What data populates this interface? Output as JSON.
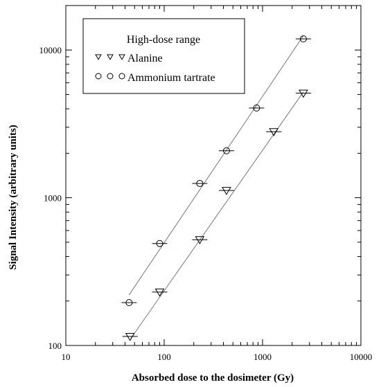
{
  "chart_data": {
    "type": "scatter",
    "title": "",
    "xlabel": "Absorbed dose to the dosimeter (Gy)",
    "ylabel": "Signal Intensity (arbitrary units)",
    "x_scale": "log",
    "y_scale": "log",
    "xlim": [
      10,
      10000
    ],
    "ylim": [
      100,
      20000
    ],
    "x_ticks": [
      "10",
      "100",
      "1000",
      "10000"
    ],
    "y_ticks": [
      "100",
      "1000",
      "10000"
    ],
    "grid": false,
    "legend": {
      "title": "High-dose range",
      "placement": "top-left"
    },
    "series": [
      {
        "name": "Alanine",
        "marker": "triangle-down",
        "color": "#000000",
        "x": [
          45,
          90,
          230,
          430,
          1300,
          2600
        ],
        "y": [
          115,
          230,
          520,
          1120,
          2800,
          5100
        ],
        "fit": [
          [
            46,
            112
          ],
          [
            2600,
            5200
          ]
        ]
      },
      {
        "name": "Ammonium tartrate",
        "marker": "circle",
        "color": "#000000",
        "x": [
          44,
          90,
          230,
          430,
          870,
          2600
        ],
        "y": [
          195,
          490,
          1250,
          2080,
          4050,
          11900
        ],
        "fit": [
          [
            44,
            220
          ],
          [
            2600,
            12500
          ]
        ]
      }
    ]
  }
}
